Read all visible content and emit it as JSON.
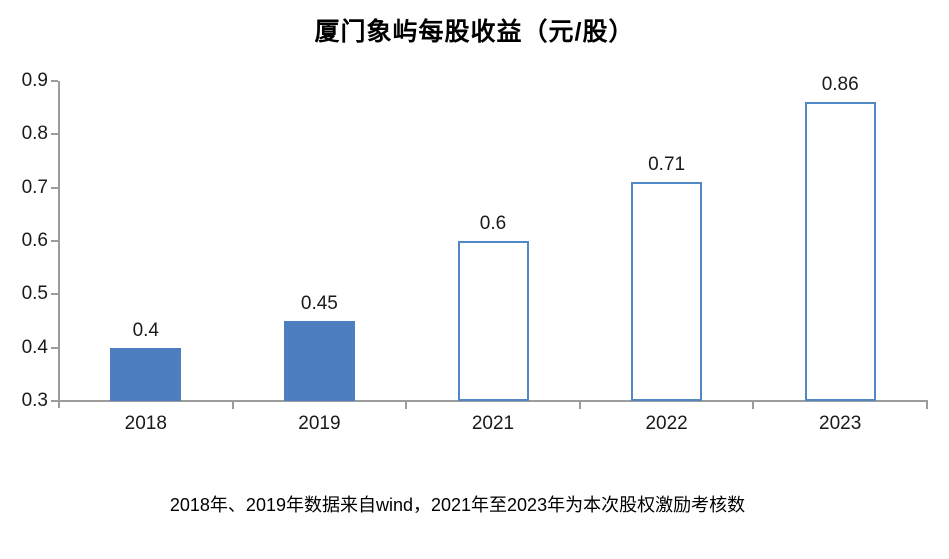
{
  "chart_data": {
    "type": "bar",
    "title": "厦门象屿每股收益（元/股）",
    "categories": [
      "2018",
      "2019",
      "2021",
      "2022",
      "2023"
    ],
    "values": [
      0.4,
      0.45,
      0.6,
      0.71,
      0.86
    ],
    "data_labels": [
      "0.4",
      "0.45",
      "0.6",
      "0.71",
      "0.86"
    ],
    "bar_styles": [
      "solid",
      "solid",
      "outline",
      "outline",
      "outline"
    ],
    "ylim": [
      0.3,
      0.9
    ],
    "ytick_step": 0.1,
    "ytick_labels": [
      "0.9",
      "0.8",
      "0.7",
      "0.6",
      "0.5",
      "0.4",
      "0.3"
    ],
    "grid": false,
    "legend": "none",
    "footnote": "2018年、2019年数据来自wind，2021年至2023年为本次股权激励考核数",
    "colors": {
      "bar_fill": "#4d7ebf",
      "bar_outline": "#5287c5",
      "axis_line": "#9c9c9c",
      "text": "#1a1a1a"
    }
  }
}
